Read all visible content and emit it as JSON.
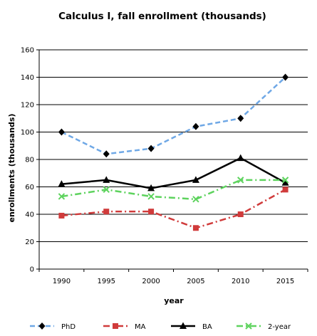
{
  "chart_data": {
    "type": "line",
    "title": "Calculus I, fall enrollment (thousands)",
    "xlabel": "year",
    "ylabel": "enrollments (thousands)",
    "x": [
      "1990",
      "1995",
      "2000",
      "2005",
      "2010",
      "2015"
    ],
    "ylim": [
      0,
      160
    ],
    "yticks": [
      0,
      20,
      40,
      60,
      80,
      100,
      120,
      140,
      160
    ],
    "grid": true,
    "legend_position": "bottom",
    "series": [
      {
        "name": "PhD",
        "values": [
          100,
          84,
          88,
          104,
          110,
          140
        ],
        "color": "#6fa8e6",
        "dash": "dashed",
        "marker": "diamond"
      },
      {
        "name": "MA",
        "values": [
          39,
          42,
          42,
          30,
          40,
          58
        ],
        "color": "#d03b3b",
        "dash": "dash-dot",
        "marker": "square"
      },
      {
        "name": "BA",
        "values": [
          62,
          65,
          59,
          65,
          81,
          63
        ],
        "color": "#000000",
        "dash": "solid",
        "marker": "triangle"
      },
      {
        "name": "2-year",
        "values": [
          53,
          58,
          53,
          51,
          65,
          65
        ],
        "color": "#5ed35e",
        "dash": "dash-dot",
        "marker": "x"
      }
    ]
  }
}
